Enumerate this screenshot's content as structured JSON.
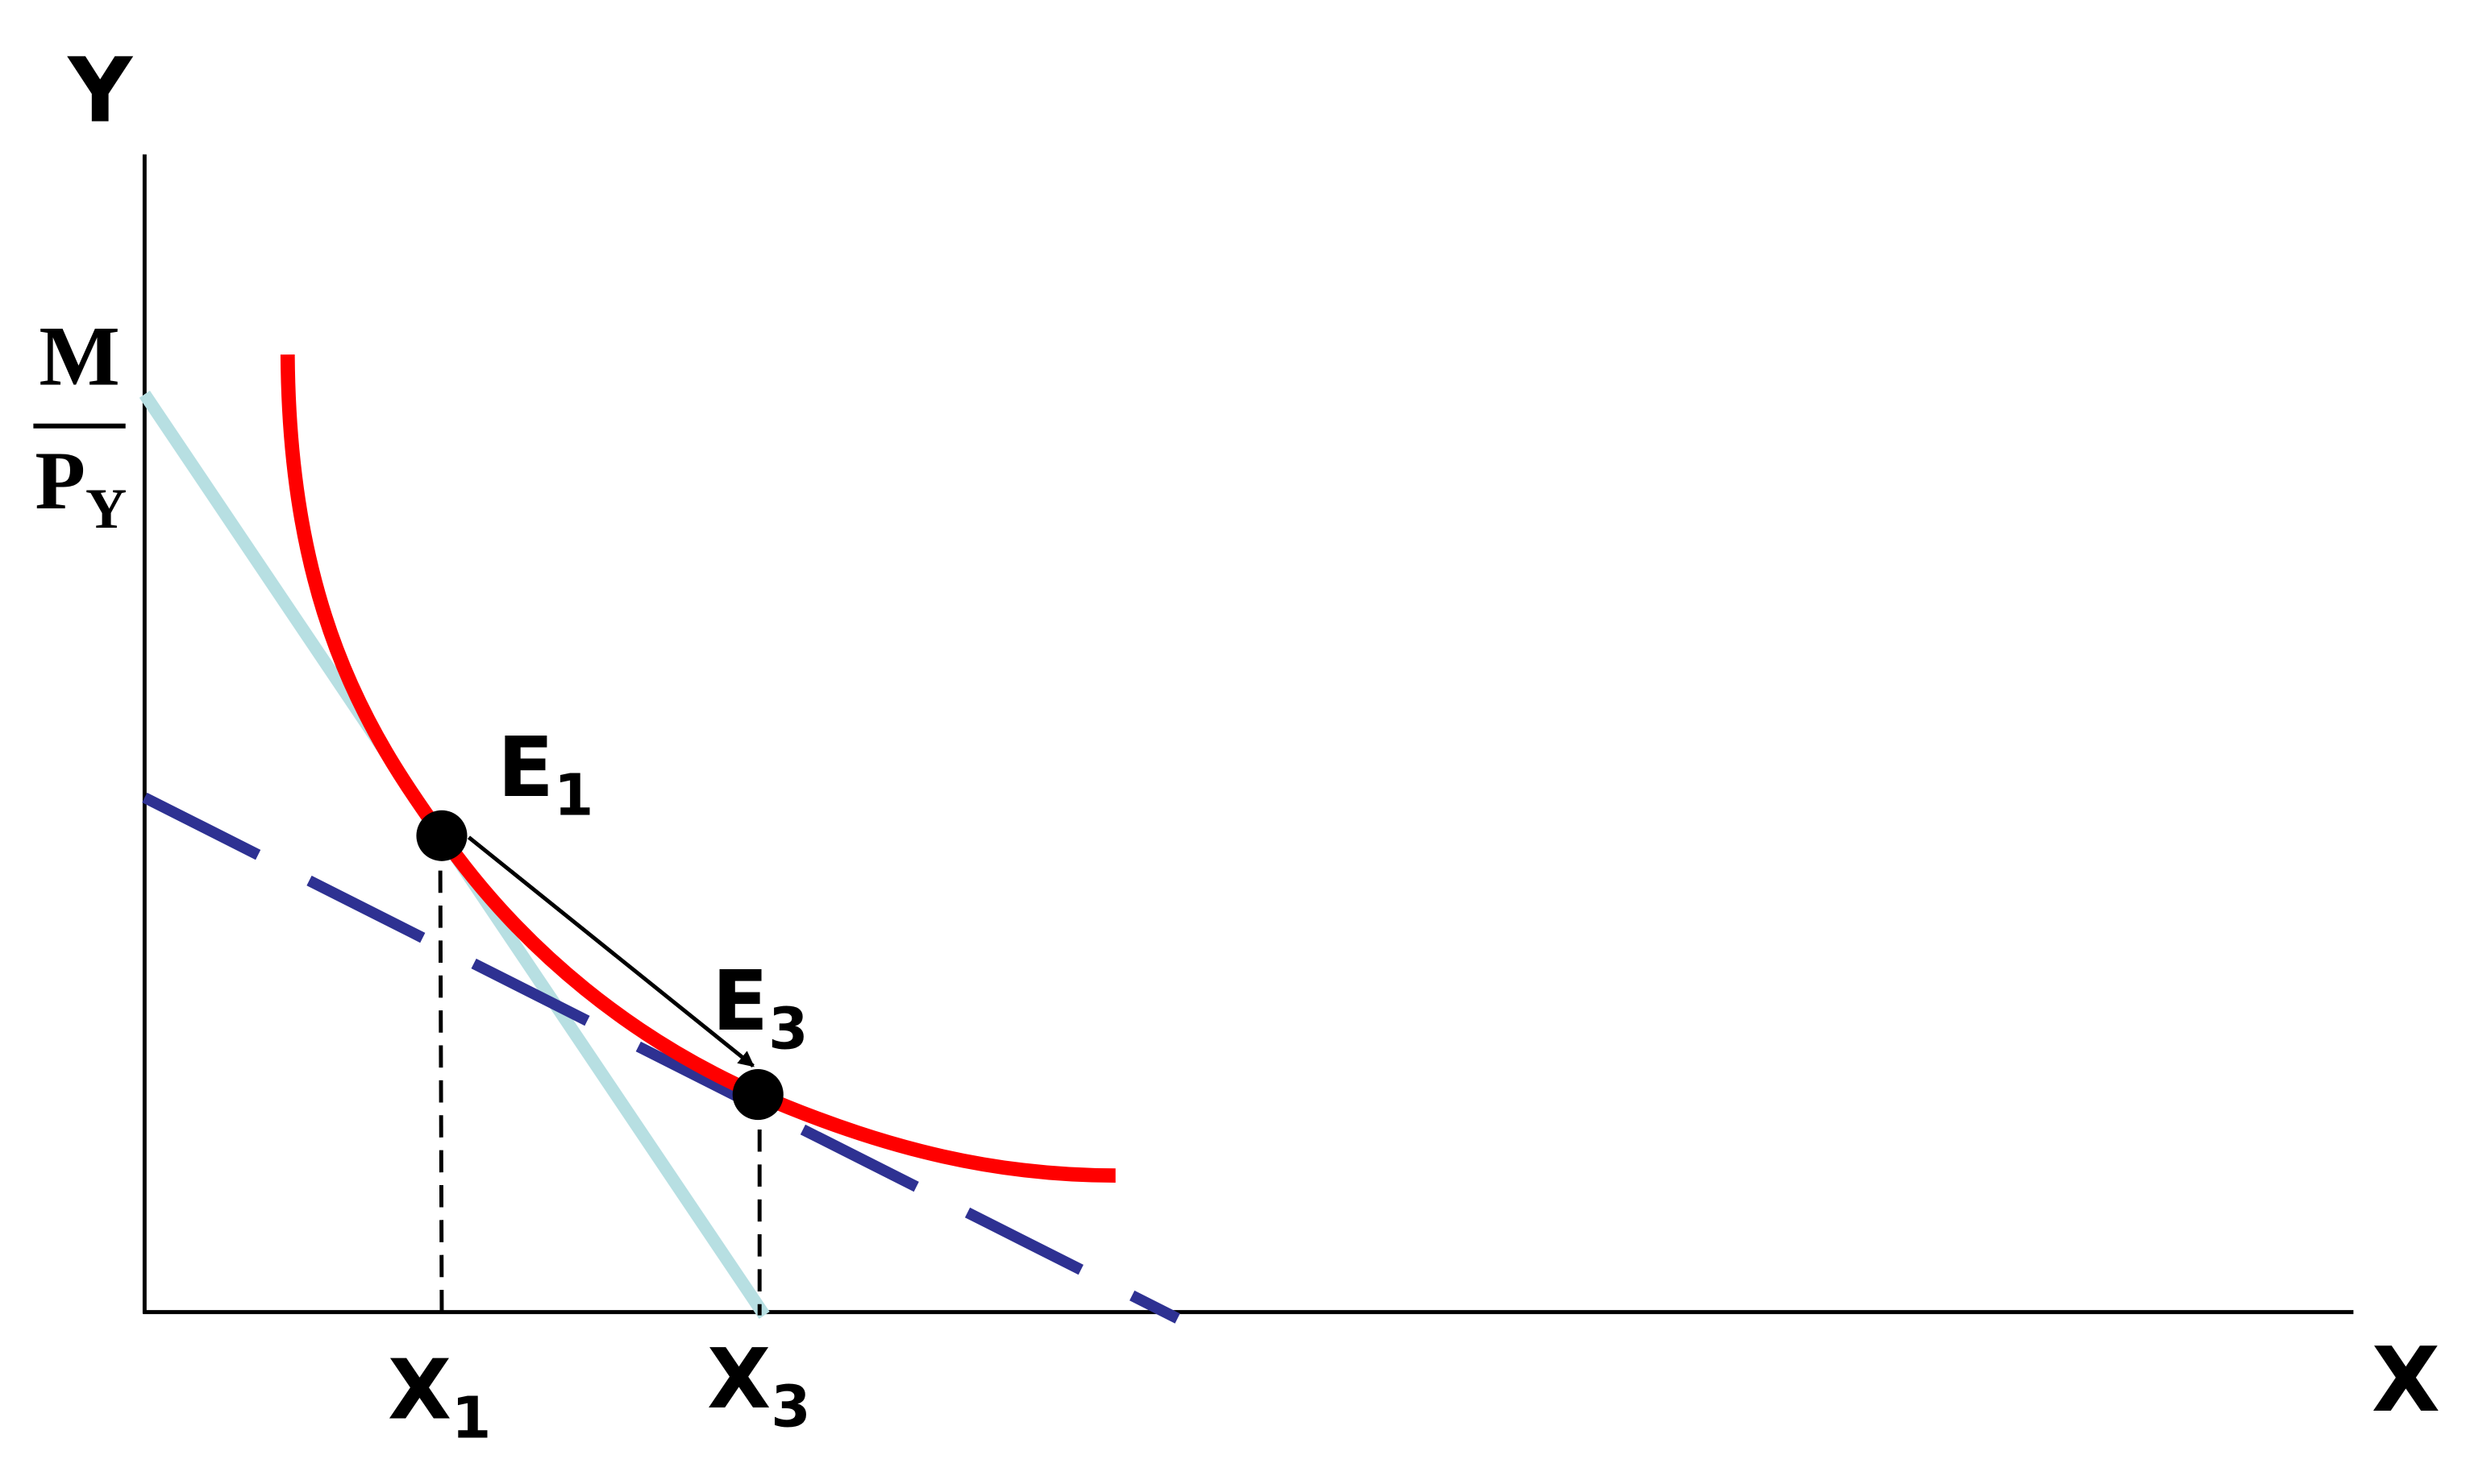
{
  "axes": {
    "y_label": "Y",
    "x_label": "X"
  },
  "intercept": {
    "numerator": "M",
    "denominator": "P",
    "denominator_sub": "Y"
  },
  "points": [
    {
      "label": "E",
      "sub": "1"
    },
    {
      "label": "E",
      "sub": "3"
    }
  ],
  "x_marks": [
    {
      "label": "X",
      "sub": "1"
    },
    {
      "label": "X",
      "sub": "3"
    }
  ]
}
